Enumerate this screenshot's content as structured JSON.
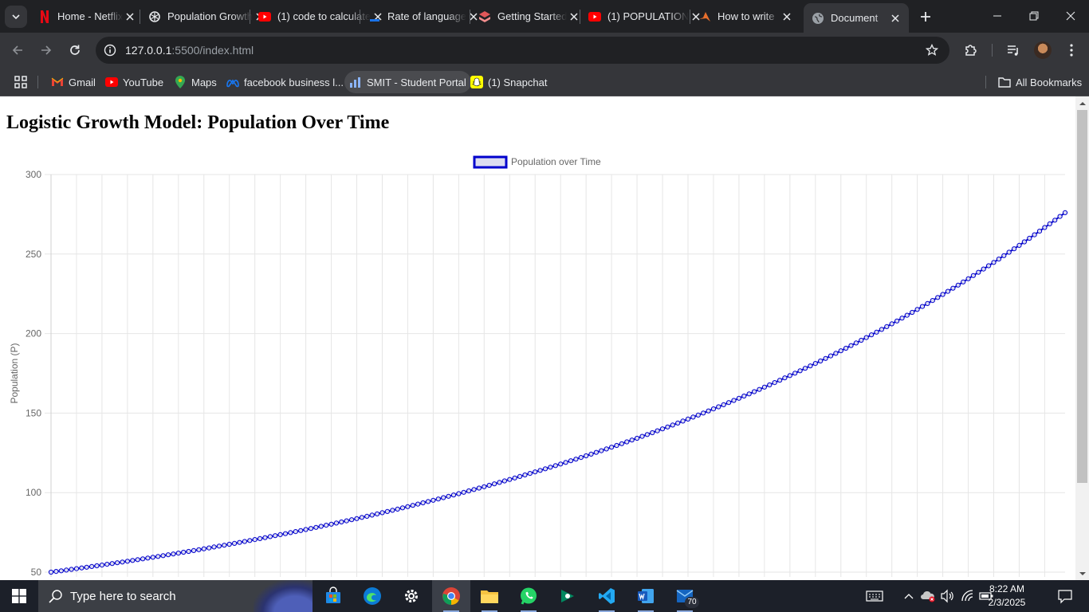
{
  "browser": {
    "tabs": [
      {
        "title": "Home - Netflix",
        "icon": "netflix-icon",
        "active": false
      },
      {
        "title": "Population Growth",
        "icon": "chatgpt-icon",
        "active": false
      },
      {
        "title": "(1) code to calculate",
        "icon": "youtube-icon",
        "active": false
      },
      {
        "title": "Rate of language",
        "icon": "dash-icon",
        "active": false
      },
      {
        "title": "Getting Started",
        "icon": "stack-icon",
        "active": false
      },
      {
        "title": "(1) POPULATION",
        "icon": "youtube-icon",
        "active": false
      },
      {
        "title": "How to write",
        "icon": "matlab-icon",
        "active": false
      },
      {
        "title": "Document",
        "icon": "globe-icon",
        "active": true
      }
    ],
    "url_host": "127.0.0.1",
    "url_rest": ":5500/index.html",
    "bookmarks": [
      {
        "label": "Gmail",
        "icon": "gmail-icon"
      },
      {
        "label": "YouTube",
        "icon": "youtube-icon"
      },
      {
        "label": "Maps",
        "icon": "maps-icon"
      },
      {
        "label": "facebook business l...",
        "icon": "meta-icon"
      },
      {
        "label": "SMIT - Student Portal",
        "icon": "portal-icon"
      },
      {
        "label": "(1) Snapchat",
        "icon": "snapchat-icon"
      }
    ],
    "all_bookmarks": "All Bookmarks"
  },
  "page": {
    "heading": "Logistic Growth Model: Population Over Time"
  },
  "chart_data": {
    "type": "line",
    "legend": "Population over Time",
    "legend_position": "top",
    "ylabel": "Population (P)",
    "xlabel": "",
    "ylim": [
      50,
      300
    ],
    "yticks": [
      50,
      100,
      150,
      200,
      250,
      300
    ],
    "x_count": 200,
    "y_start": 50,
    "y_end": 276,
    "series_color": "#0000cc",
    "grid": true
  },
  "taskbar": {
    "search_placeholder": "Type here to search",
    "time": "8:22 AM",
    "date": "2/3/2025",
    "badge_count": "70"
  }
}
